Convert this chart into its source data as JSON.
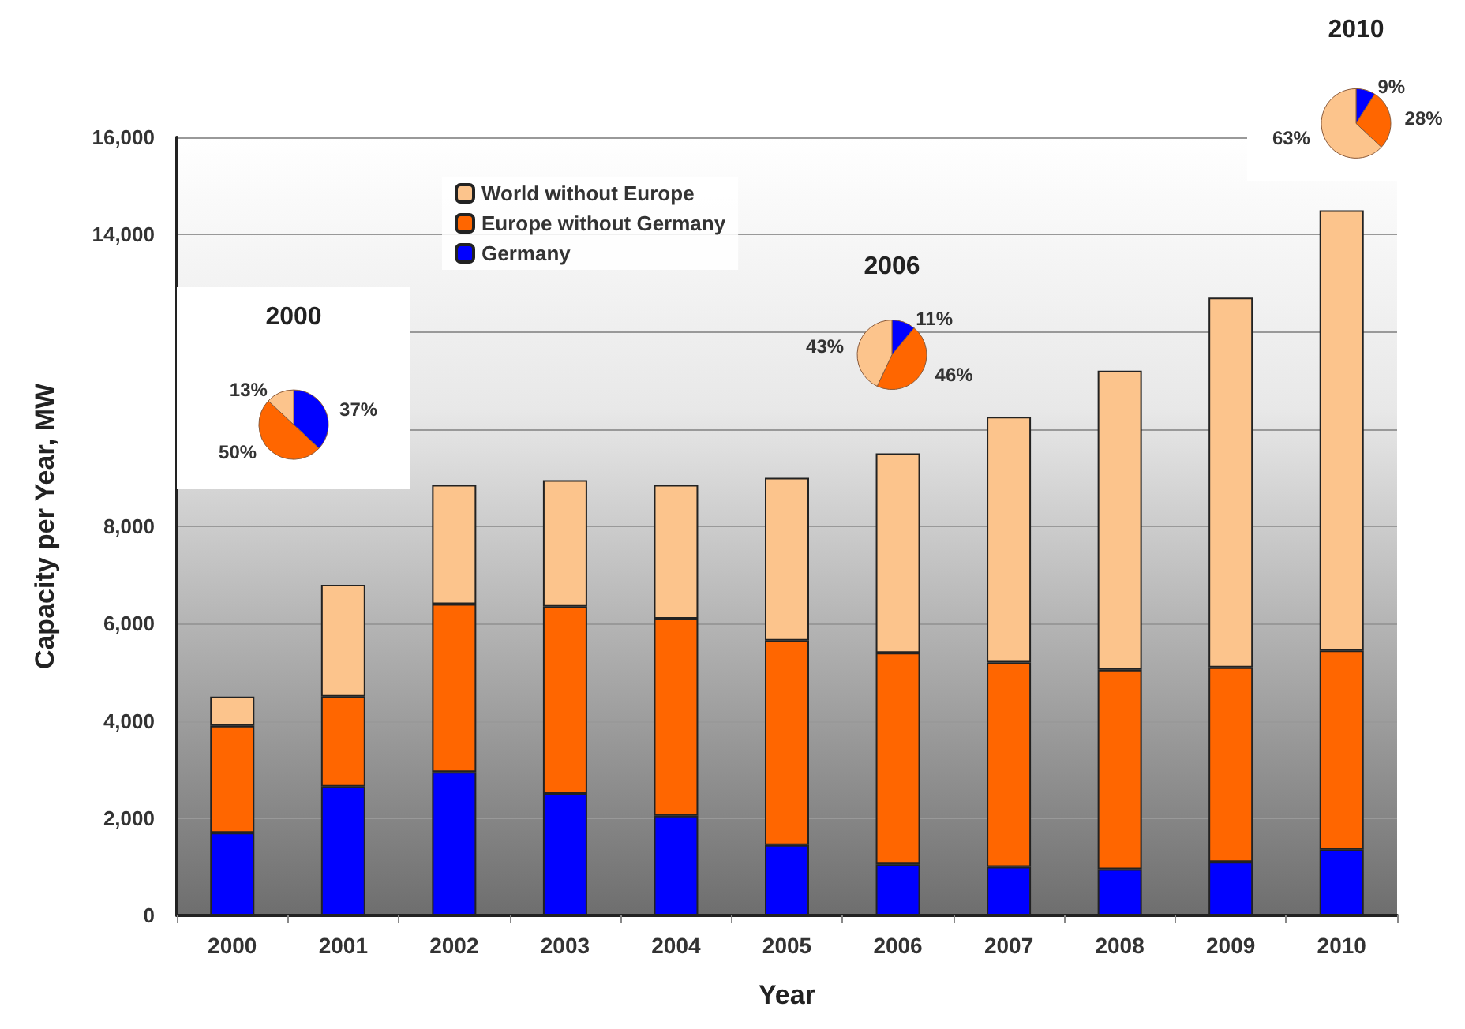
{
  "chart_data": [
    {
      "type": "bar",
      "stacked": true,
      "categories": [
        "2000",
        "2001",
        "2002",
        "2003",
        "2004",
        "2005",
        "2006",
        "2007",
        "2008",
        "2009",
        "2010"
      ],
      "series": [
        {
          "name": "Germany",
          "color": "#0000ff",
          "values": [
            1700,
            2650,
            2950,
            2500,
            2050,
            1450,
            1050,
            1000,
            950,
            1100,
            1350
          ]
        },
        {
          "name": "Europe without Germany",
          "color": "#ff6600",
          "values": [
            2200,
            1850,
            3450,
            3850,
            4050,
            4200,
            4350,
            4200,
            4100,
            4000,
            4100
          ]
        },
        {
          "name": "World without Europe",
          "color": "#fcc48c",
          "values": [
            600,
            2300,
            2450,
            2600,
            2750,
            3350,
            4100,
            5050,
            6150,
            7600,
            9050
          ]
        }
      ],
      "xlabel": "Year",
      "ylabel": "Capacity per Year, MW",
      "ylim": [
        0,
        16000
      ],
      "yticks": [
        0,
        {
          "value": 2000,
          "label": "2,000"
        },
        {
          "value": 4000,
          "label": "4,000"
        },
        {
          "value": 6000,
          "label": "6,000"
        },
        {
          "value": 8000,
          "label": "8,000"
        },
        {
          "value": 10000,
          "label": null
        },
        {
          "value": 12000,
          "label": null
        },
        {
          "value": 14000,
          "label": "14,000"
        },
        {
          "value": 16000,
          "label": "16,000"
        }
      ],
      "grid": "y",
      "legend": "top"
    },
    {
      "type": "pie",
      "title": "2000",
      "categories": [
        null,
        null,
        null
      ],
      "values": [
        37,
        50,
        13
      ],
      "colors": [
        "#0000ff",
        "#ff6600",
        "#fcc48c"
      ],
      "value_labels": [
        "37%",
        "50%",
        "13%"
      ]
    },
    {
      "type": "pie",
      "title": "2006",
      "categories": [
        null,
        null,
        null
      ],
      "values": [
        11,
        46,
        43
      ],
      "colors": [
        "#0000ff",
        "#ff6600",
        "#fcc48c"
      ],
      "value_labels": [
        "11%",
        "46%",
        "43%"
      ]
    },
    {
      "type": "pie",
      "title": "2010",
      "categories": [
        null,
        null,
        null
      ],
      "values": [
        9,
        28,
        63
      ],
      "colors": [
        "#0000ff",
        "#ff6600",
        "#fcc48c"
      ],
      "value_labels": [
        "9%",
        "28%",
        "63%"
      ]
    }
  ]
}
